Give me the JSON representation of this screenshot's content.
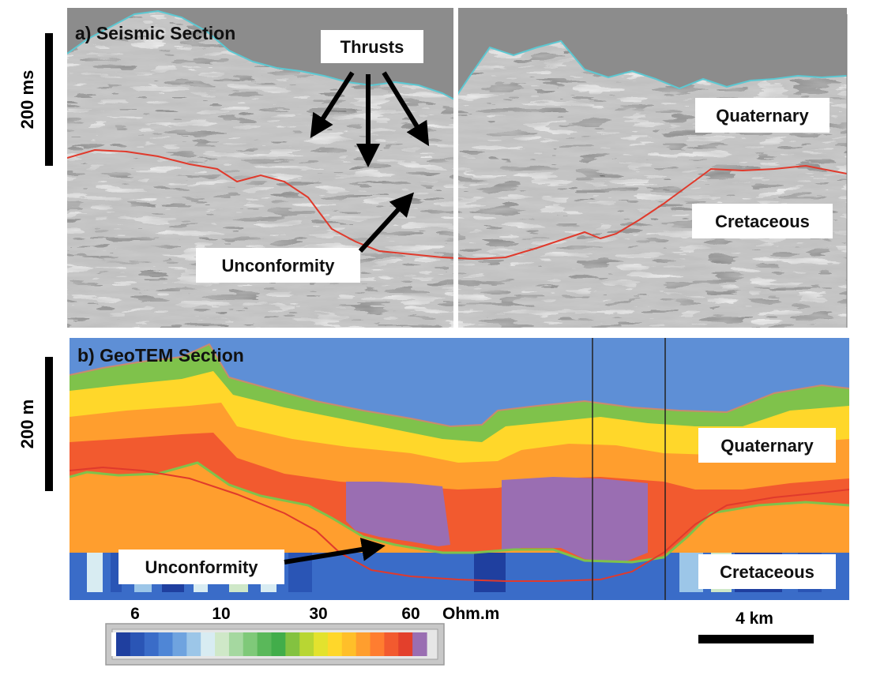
{
  "panel_a": {
    "title": "a) Seismic Section",
    "vertical_scale_label": "200 ms",
    "labels": {
      "thrusts": "Thrusts",
      "quaternary": "Quaternary",
      "cretaceous": "Cretaceous",
      "unconformity": "Unconformity"
    }
  },
  "panel_b": {
    "title": "b) GeoTEM Section",
    "vertical_scale_label": "200 m",
    "labels": {
      "quaternary": "Quaternary",
      "cretaceous": "Cretaceous",
      "unconformity": "Unconformity"
    }
  },
  "colorbar": {
    "tick_labels": [
      "6",
      "10",
      "30",
      "60"
    ],
    "unit": "Ohm.m",
    "colors": [
      "#1f3f9f",
      "#2a55b5",
      "#3a6cc8",
      "#4f86d6",
      "#6fa3df",
      "#9cc6e8",
      "#d8ecf2",
      "#cfe8c8",
      "#a5d8a0",
      "#7fc979",
      "#5ab85a",
      "#42ad4a",
      "#83c240",
      "#b8d633",
      "#e3e22e",
      "#ffd72a",
      "#ffbf29",
      "#ff9e2e",
      "#ff7d30",
      "#f25a2f",
      "#e3402c",
      "#9a6eb2"
    ]
  },
  "horizontal_scale": {
    "label": "4 km"
  },
  "colors": {
    "seafloor_line": "#5cc8d2",
    "unconformity_line": "#e03a2c",
    "resistivity_boundary": "#7fc24b"
  }
}
